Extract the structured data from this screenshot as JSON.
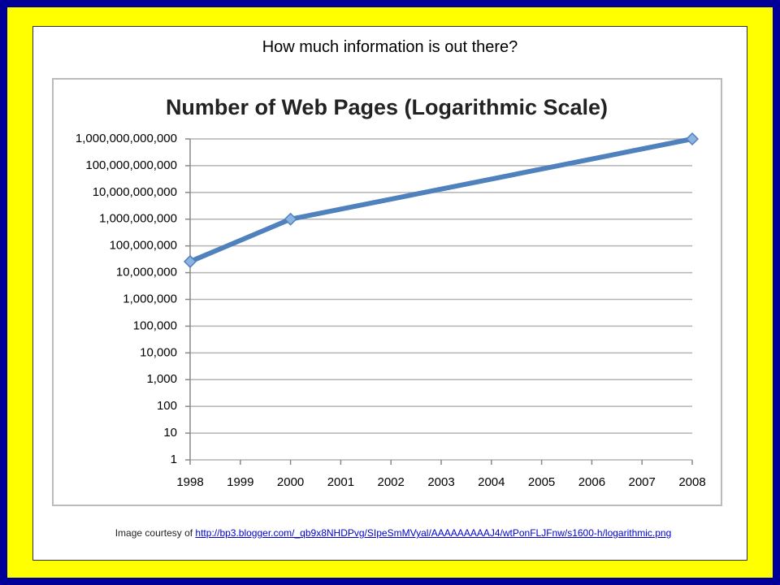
{
  "slide_title": "How much information is out there?",
  "caption": {
    "text": "Image courtesy of ",
    "link": "http://bp3.blogger.com/_qb9x8NHDPvg/SIpeSmMVyal/AAAAAAAAAJ4/wtPonFLJFnw/s1600-h/logarithmic.png"
  },
  "chart_data": {
    "type": "line",
    "title": "Number of Web Pages (Logarithmic Scale)",
    "x": [
      1998,
      2000,
      2008
    ],
    "values": [
      26000000,
      1000000000,
      1000000000000
    ],
    "color": "#4f81bd",
    "xlim": [
      1998,
      2008
    ],
    "xticks": [
      1998,
      1999,
      2000,
      2001,
      2002,
      2003,
      2004,
      2005,
      2006,
      2007,
      2008
    ],
    "ylim": [
      1,
      1000000000000
    ],
    "log_scale": true,
    "grid": true,
    "yticks": [
      1,
      10,
      100,
      {
        "value": 1000,
        "label": "1,000"
      },
      {
        "value": 10000,
        "label": "10,000"
      },
      {
        "value": 100000,
        "label": "100,000"
      },
      {
        "value": 1000000,
        "label": "1,000,000"
      },
      {
        "value": 10000000,
        "label": "10,000,000"
      },
      {
        "value": 100000000,
        "label": "100,000,000"
      },
      {
        "value": 1000000000,
        "label": "1,000,000,000"
      },
      {
        "value": 10000000000,
        "label": "10,000,000,000"
      },
      {
        "value": 100000000000,
        "label": "100,000,000,000"
      },
      {
        "value": 1000000000000,
        "label": "1,000,000,000,000"
      }
    ]
  }
}
